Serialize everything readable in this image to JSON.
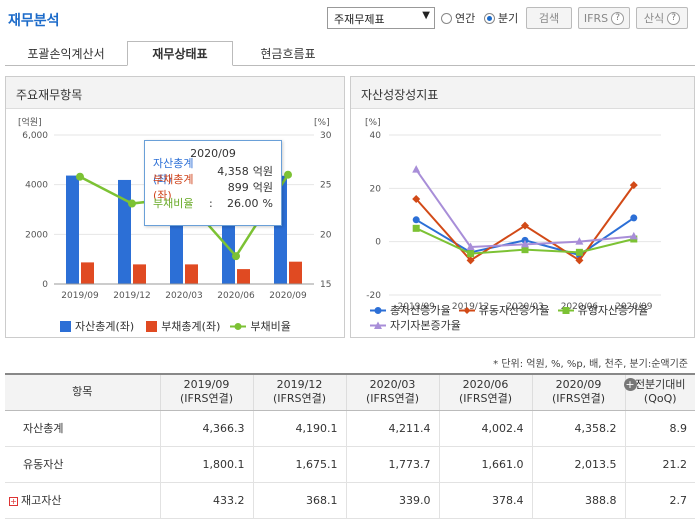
{
  "header": {
    "title": "재무분석",
    "select_value": "주재무제표",
    "radio_annual": "연간",
    "radio_quarter": "분기",
    "search_label": "검색",
    "ifrs_label": "IFRS",
    "formula_label": "산식"
  },
  "tabs": [
    {
      "label": "포괄손익계산서"
    },
    {
      "label": "재무상태표"
    },
    {
      "label": "현금흐름표"
    }
  ],
  "left_panel": {
    "title": "주요재무항목",
    "tooltip": {
      "period": "2020/09",
      "row1_label": "자산총계(좌)",
      "row1_value": "4,358",
      "row1_unit": "억원",
      "row2_label": "부채총계(좌)",
      "row2_value": "899",
      "row2_unit": "억원",
      "row3_label": "부채비율",
      "row3_sep": ":",
      "row3_value": "26.00",
      "row3_unit": "%"
    },
    "legend": [
      "자산총계(좌)",
      "부채총계(좌)",
      "부채비율"
    ]
  },
  "right_panel": {
    "title": "자산성장성지표",
    "legend": [
      "총자산증가율",
      "유동자산증가율",
      "유형자산증가율",
      "자기자본증가율"
    ]
  },
  "chart_data": [
    {
      "type": "bar",
      "categories": [
        "2019/09",
        "2019/12",
        "2020/03",
        "2020/06",
        "2020/09"
      ],
      "series": [
        {
          "name": "자산총계(좌)",
          "values": [
            4366.3,
            4190.1,
            4211.4,
            4002.4,
            4358.2
          ],
          "color": "#2c6fd6"
        },
        {
          "name": "부채총계(좌)",
          "values": [
            870,
            790,
            790,
            600,
            899
          ],
          "color": "#e04a22"
        },
        {
          "name": "부채비율",
          "values": [
            25.8,
            23.1,
            23.7,
            17.8,
            26.0
          ],
          "color": "#7cc234",
          "axis": "right",
          "kind": "line"
        }
      ],
      "ylabel_left": "[억원]",
      "ylabel_right": "[%]",
      "ylim_left": [
        0,
        6000
      ],
      "ylim_right": [
        15,
        30
      ],
      "yticks_left": [
        "0",
        "2000",
        "4000",
        "6,000"
      ],
      "yticks_right": [
        "15",
        "20",
        "25",
        "30"
      ]
    },
    {
      "type": "line",
      "categories": [
        "2019/09",
        "2019/12",
        "2020/03",
        "2020/06",
        "2020/09"
      ],
      "series": [
        {
          "name": "총자산증가율",
          "values": [
            8.2,
            -4.0,
            0.5,
            -5.0,
            8.9
          ],
          "color": "#2c6fd6",
          "marker": "circle"
        },
        {
          "name": "유동자산증가율",
          "values": [
            16.0,
            -7.0,
            6.0,
            -7.0,
            21.2
          ],
          "color": "#d24a17",
          "marker": "diamond"
        },
        {
          "name": "유형자산증가율",
          "values": [
            5.0,
            -4.5,
            -3.0,
            -4.0,
            1.0
          ],
          "color": "#7cc234",
          "marker": "square"
        },
        {
          "name": "자기자본증가율",
          "values": [
            27.0,
            -2.0,
            -1.0,
            0.0,
            2.0
          ],
          "color": "#a88ed8",
          "marker": "triangle"
        }
      ],
      "ylabel": "[%]",
      "ylim": [
        -20,
        40
      ],
      "yticks": [
        "-20",
        "0",
        "20",
        "40"
      ]
    }
  ],
  "unit_note": "* 단위: 억원, %, %p, 배, 천주, 분기:순액기준",
  "table": {
    "head_item": "항목",
    "columns": [
      {
        "period": "2019/09",
        "basis": "(IFRS연결)"
      },
      {
        "period": "2019/12",
        "basis": "(IFRS연결)"
      },
      {
        "period": "2020/03",
        "basis": "(IFRS연결)"
      },
      {
        "period": "2020/06",
        "basis": "(IFRS연결)"
      },
      {
        "period": "2020/09",
        "basis": "(IFRS연결)"
      }
    ],
    "last_col_line1": "전분기대비",
    "last_col_line2": "(QoQ)",
    "rows": [
      {
        "label": "자산총계",
        "values": [
          "4,366.3",
          "4,190.1",
          "4,211.4",
          "4,002.4",
          "4,358.2",
          "8.9"
        ]
      },
      {
        "label": "유동자산",
        "values": [
          "1,800.1",
          "1,675.1",
          "1,773.7",
          "1,661.0",
          "2,013.5",
          "21.2"
        ]
      },
      {
        "label": "재고자산",
        "values": [
          "433.2",
          "368.1",
          "339.0",
          "378.4",
          "388.8",
          "2.7"
        ]
      }
    ]
  }
}
